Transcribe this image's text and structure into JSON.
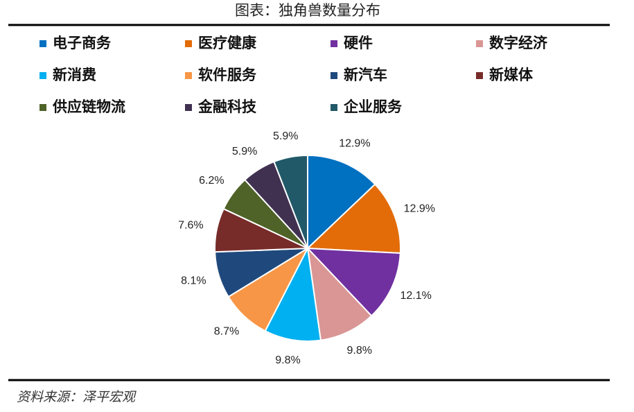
{
  "chart_data": {
    "type": "pie",
    "title": "图表：独角兽数量分布",
    "source": "资料来源：泽平宏观",
    "categories": [
      "电子商务",
      "医疗健康",
      "硬件",
      "数字经济",
      "新消费",
      "软件服务",
      "新汽车",
      "新媒体",
      "供应链物流",
      "金融科技",
      "企业服务"
    ],
    "values": [
      12.9,
      12.9,
      12.1,
      9.8,
      9.8,
      8.7,
      8.1,
      7.6,
      6.2,
      5.9,
      5.9
    ],
    "value_labels": [
      "12.9%",
      "12.9%",
      "12.1%",
      "9.8%",
      "9.8%",
      "8.7%",
      "8.1%",
      "7.6%",
      "6.2%",
      "5.9%",
      "5.9%"
    ],
    "colors": [
      "#0070c0",
      "#e36c09",
      "#7030a0",
      "#d99694",
      "#00b0f0",
      "#f79646",
      "#1f497d",
      "#772c2a",
      "#4f6228",
      "#403151",
      "#215968"
    ]
  }
}
